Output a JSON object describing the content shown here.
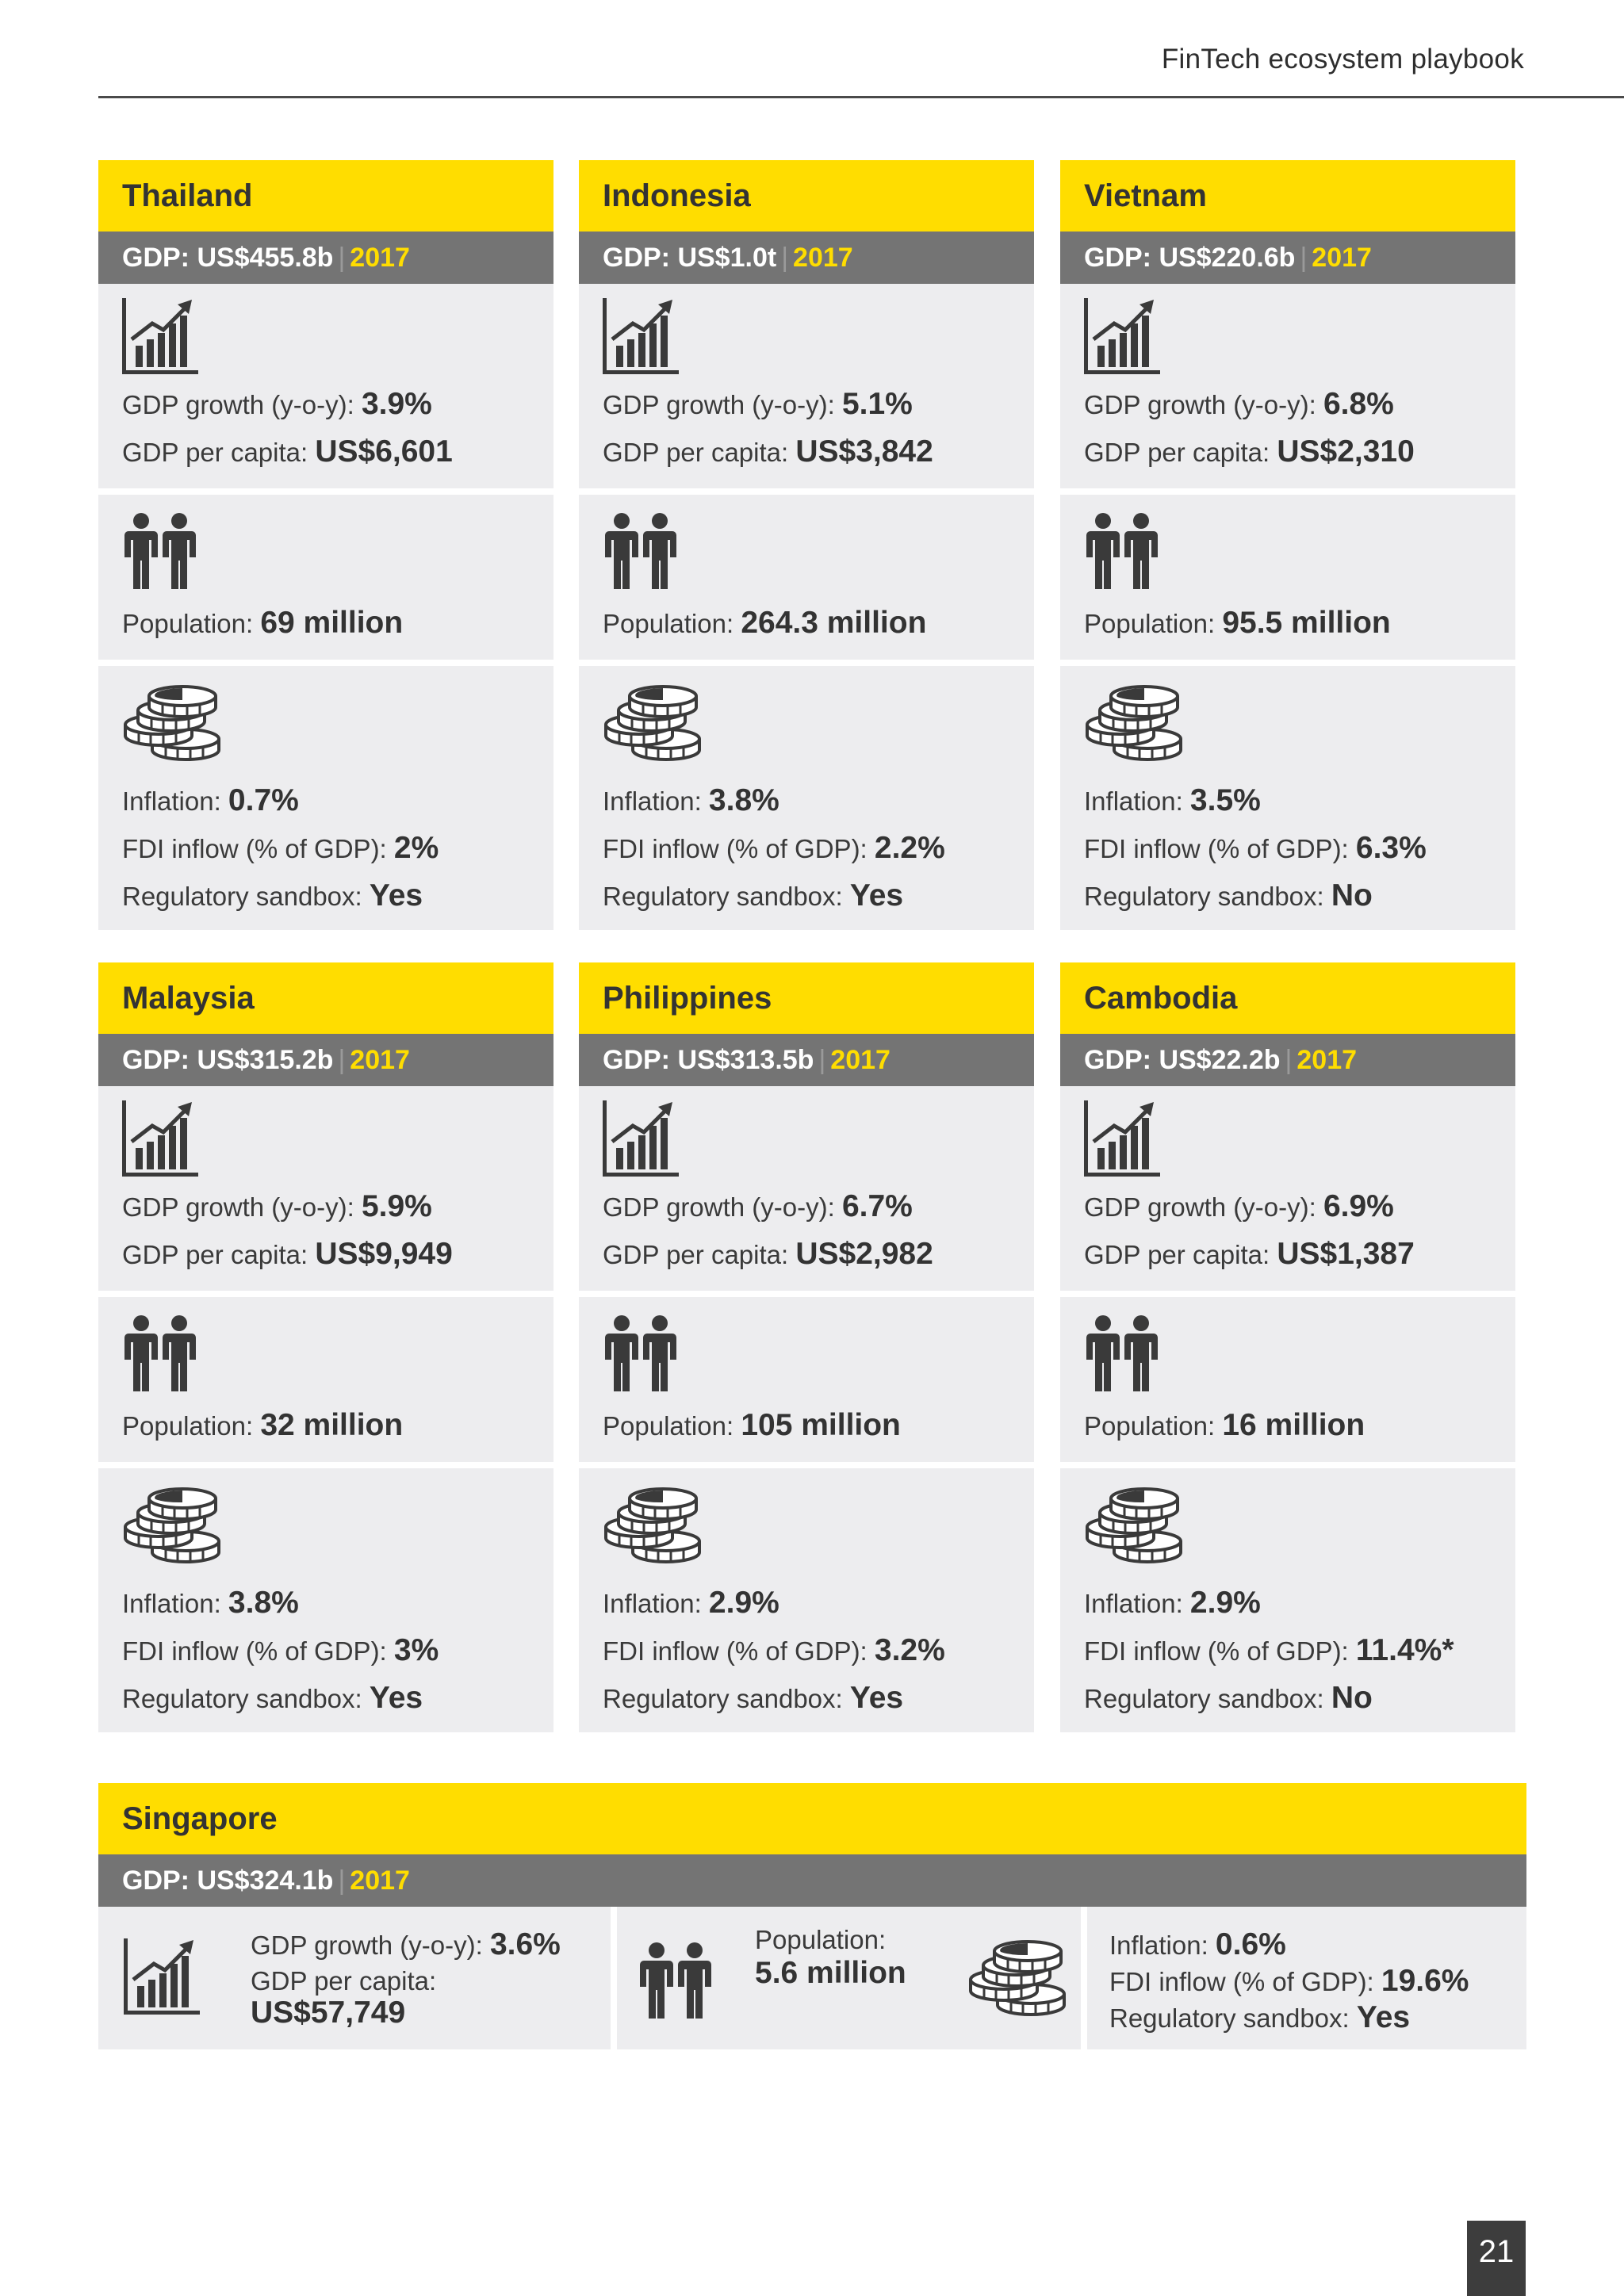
{
  "header": {
    "title": "FinTech ecosystem playbook"
  },
  "labels": {
    "gdp_growth": "GDP growth (y-o-y): ",
    "gdp_per_capita": "GDP per capita: ",
    "population": "Population: ",
    "inflation": "Inflation: ",
    "fdi": "FDI inflow (% of GDP): ",
    "sandbox": "Regulatory sandbox: ",
    "separator": "|"
  },
  "countries": [
    {
      "name": "Thailand",
      "gdp": "GDP: US$455.8b",
      "year": "2017",
      "growth": "3.9%",
      "per_capita": "US$6,601",
      "population": "69 million",
      "inflation": "0.7%",
      "fdi": "2%",
      "sandbox": "Yes"
    },
    {
      "name": "Indonesia",
      "gdp": "GDP: US$1.0t",
      "year": "2017",
      "growth": "5.1%",
      "per_capita": "US$3,842",
      "population": "264.3 million",
      "inflation": "3.8%",
      "fdi": "2.2%",
      "sandbox": "Yes"
    },
    {
      "name": "Vietnam",
      "gdp": "GDP: US$220.6b",
      "year": "2017",
      "growth": "6.8%",
      "per_capita": "US$2,310",
      "population": "95.5 million",
      "inflation": "3.5%",
      "fdi": "6.3%",
      "sandbox": "No"
    },
    {
      "name": "Malaysia",
      "gdp": "GDP: US$315.2b",
      "year": "2017",
      "growth": "5.9%",
      "per_capita": "US$9,949",
      "population": "32 million",
      "inflation": "3.8%",
      "fdi": "3%",
      "sandbox": "Yes"
    },
    {
      "name": "Philippines",
      "gdp": "GDP: US$313.5b",
      "year": "2017",
      "growth": "6.7%",
      "per_capita": "US$2,982",
      "population": "105 million",
      "inflation": "2.9%",
      "fdi": "3.2%",
      "sandbox": "Yes"
    },
    {
      "name": "Cambodia",
      "gdp": "GDP: US$22.2b",
      "year": "2017",
      "growth": "6.9%",
      "per_capita": "US$1,387",
      "population": "16 million",
      "inflation": "2.9%",
      "fdi": "11.4%*",
      "sandbox": "No"
    }
  ],
  "singapore": {
    "name": "Singapore",
    "gdp": "GDP: US$324.1b",
    "year": "2017",
    "growth": "3.6%",
    "per_capita": "US$57,749",
    "population_label": "Population:",
    "population": "5.6 million",
    "inflation": "0.6%",
    "fdi": "19.6%",
    "sandbox": "Yes"
  },
  "page_number": "21",
  "colors": {
    "accent": "#ffdd00",
    "gdp_bar": "#747474",
    "panel": "#ededef",
    "icon": "#3a3a3a"
  }
}
